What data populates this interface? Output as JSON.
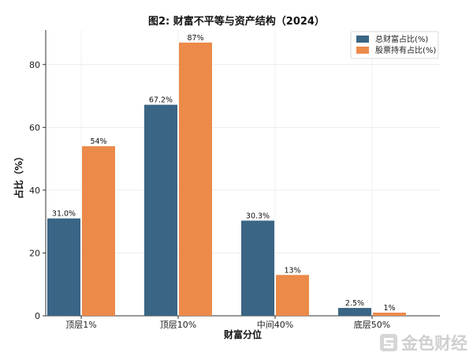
{
  "chart_data": {
    "type": "bar",
    "title": "图2: 财富不平等与资产结构（2024）",
    "xlabel": "财富分位",
    "ylabel": "占比（%）",
    "categories": [
      "顶层1%",
      "顶层10%",
      "中间40%",
      "底层50%"
    ],
    "series": [
      {
        "name": "总财富占比(%)",
        "values": [
          31.0,
          67.2,
          30.3,
          2.5
        ],
        "labels": [
          "31.0%",
          "67.2%",
          "30.3%",
          "2.5%"
        ],
        "color": "#3a6584"
      },
      {
        "name": "股票持有占比(%)",
        "values": [
          54,
          87,
          13,
          1
        ],
        "labels": [
          "54%",
          "87%",
          "13%",
          "1%"
        ],
        "color": "#ec8a4a"
      }
    ],
    "ylim": [
      0,
      91
    ],
    "yticks": [
      0,
      20,
      40,
      60,
      80
    ],
    "grid": true,
    "legend_position": "top-right"
  },
  "watermark": "金色财经"
}
